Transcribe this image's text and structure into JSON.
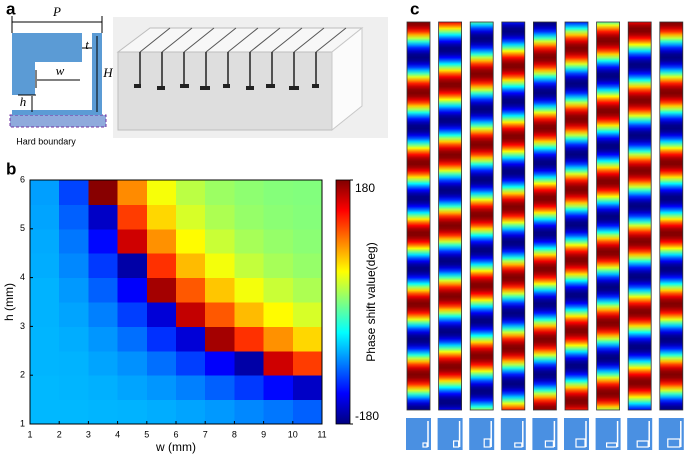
{
  "panel_labels": [
    "a",
    "b",
    "c"
  ],
  "schematic": {
    "labels": {
      "P": "P",
      "t": "t",
      "H": "H",
      "w": "w",
      "h": "h"
    },
    "boundary_label": "Hard boundary"
  },
  "chart_data": {
    "type": "heatmap",
    "xlabel": "w (mm)",
    "ylabel": "h (mm)",
    "colorbar_label": "Phase shift  value(deg)",
    "xlim": [
      1,
      11
    ],
    "ylim": [
      1,
      6
    ],
    "xticks": [
      1,
      2,
      3,
      4,
      5,
      6,
      7,
      8,
      9,
      10,
      11
    ],
    "yticks": [
      1,
      2,
      3,
      4,
      5,
      6
    ],
    "clim": [
      -180,
      180
    ],
    "cticks": [
      180,
      -180
    ],
    "colormap": "jet",
    "xbins": [
      1,
      2,
      3,
      4,
      5,
      6,
      7,
      8,
      9,
      10,
      11
    ],
    "ybins": [
      1,
      1.5,
      2,
      2.5,
      3,
      3.5,
      4,
      4.5,
      5,
      5.5,
      6
    ],
    "z": [
      [
        -70,
        -70,
        -71,
        -72,
        -74,
        -77,
        -81,
        -87,
        -93,
        -101
      ],
      [
        -70,
        -71,
        -73,
        -77,
        -82,
        -90,
        -101,
        -115,
        -133,
        -155
      ],
      [
        -71,
        -72,
        -77,
        -84,
        -96,
        -113,
        -136,
        -166,
        152,
        114
      ],
      [
        -71,
        -74,
        -82,
        -96,
        -118,
        -149,
        167,
        118,
        84,
        59
      ],
      [
        -72,
        -77,
        -90,
        -113,
        -149,
        156,
        104,
        69,
        46,
        31
      ],
      [
        -72,
        -81,
        -101,
        -136,
        167,
        104,
        65,
        41,
        26,
        16
      ],
      [
        -74,
        -87,
        -115,
        -166,
        118,
        69,
        41,
        24,
        14,
        8
      ],
      [
        -75,
        -93,
        -133,
        152,
        84,
        46,
        26,
        14,
        8,
        4
      ],
      [
        -77,
        -101,
        -155,
        114,
        59,
        31,
        16,
        8,
        4,
        2
      ],
      [
        -79,
        -111,
        177,
        86,
        42,
        21,
        10,
        5,
        2,
        1
      ]
    ]
  },
  "field_columns": {
    "offsets": [
      0,
      40,
      95,
      135,
      180,
      -135,
      -95,
      -40,
      0
    ],
    "periods": 5.5
  }
}
